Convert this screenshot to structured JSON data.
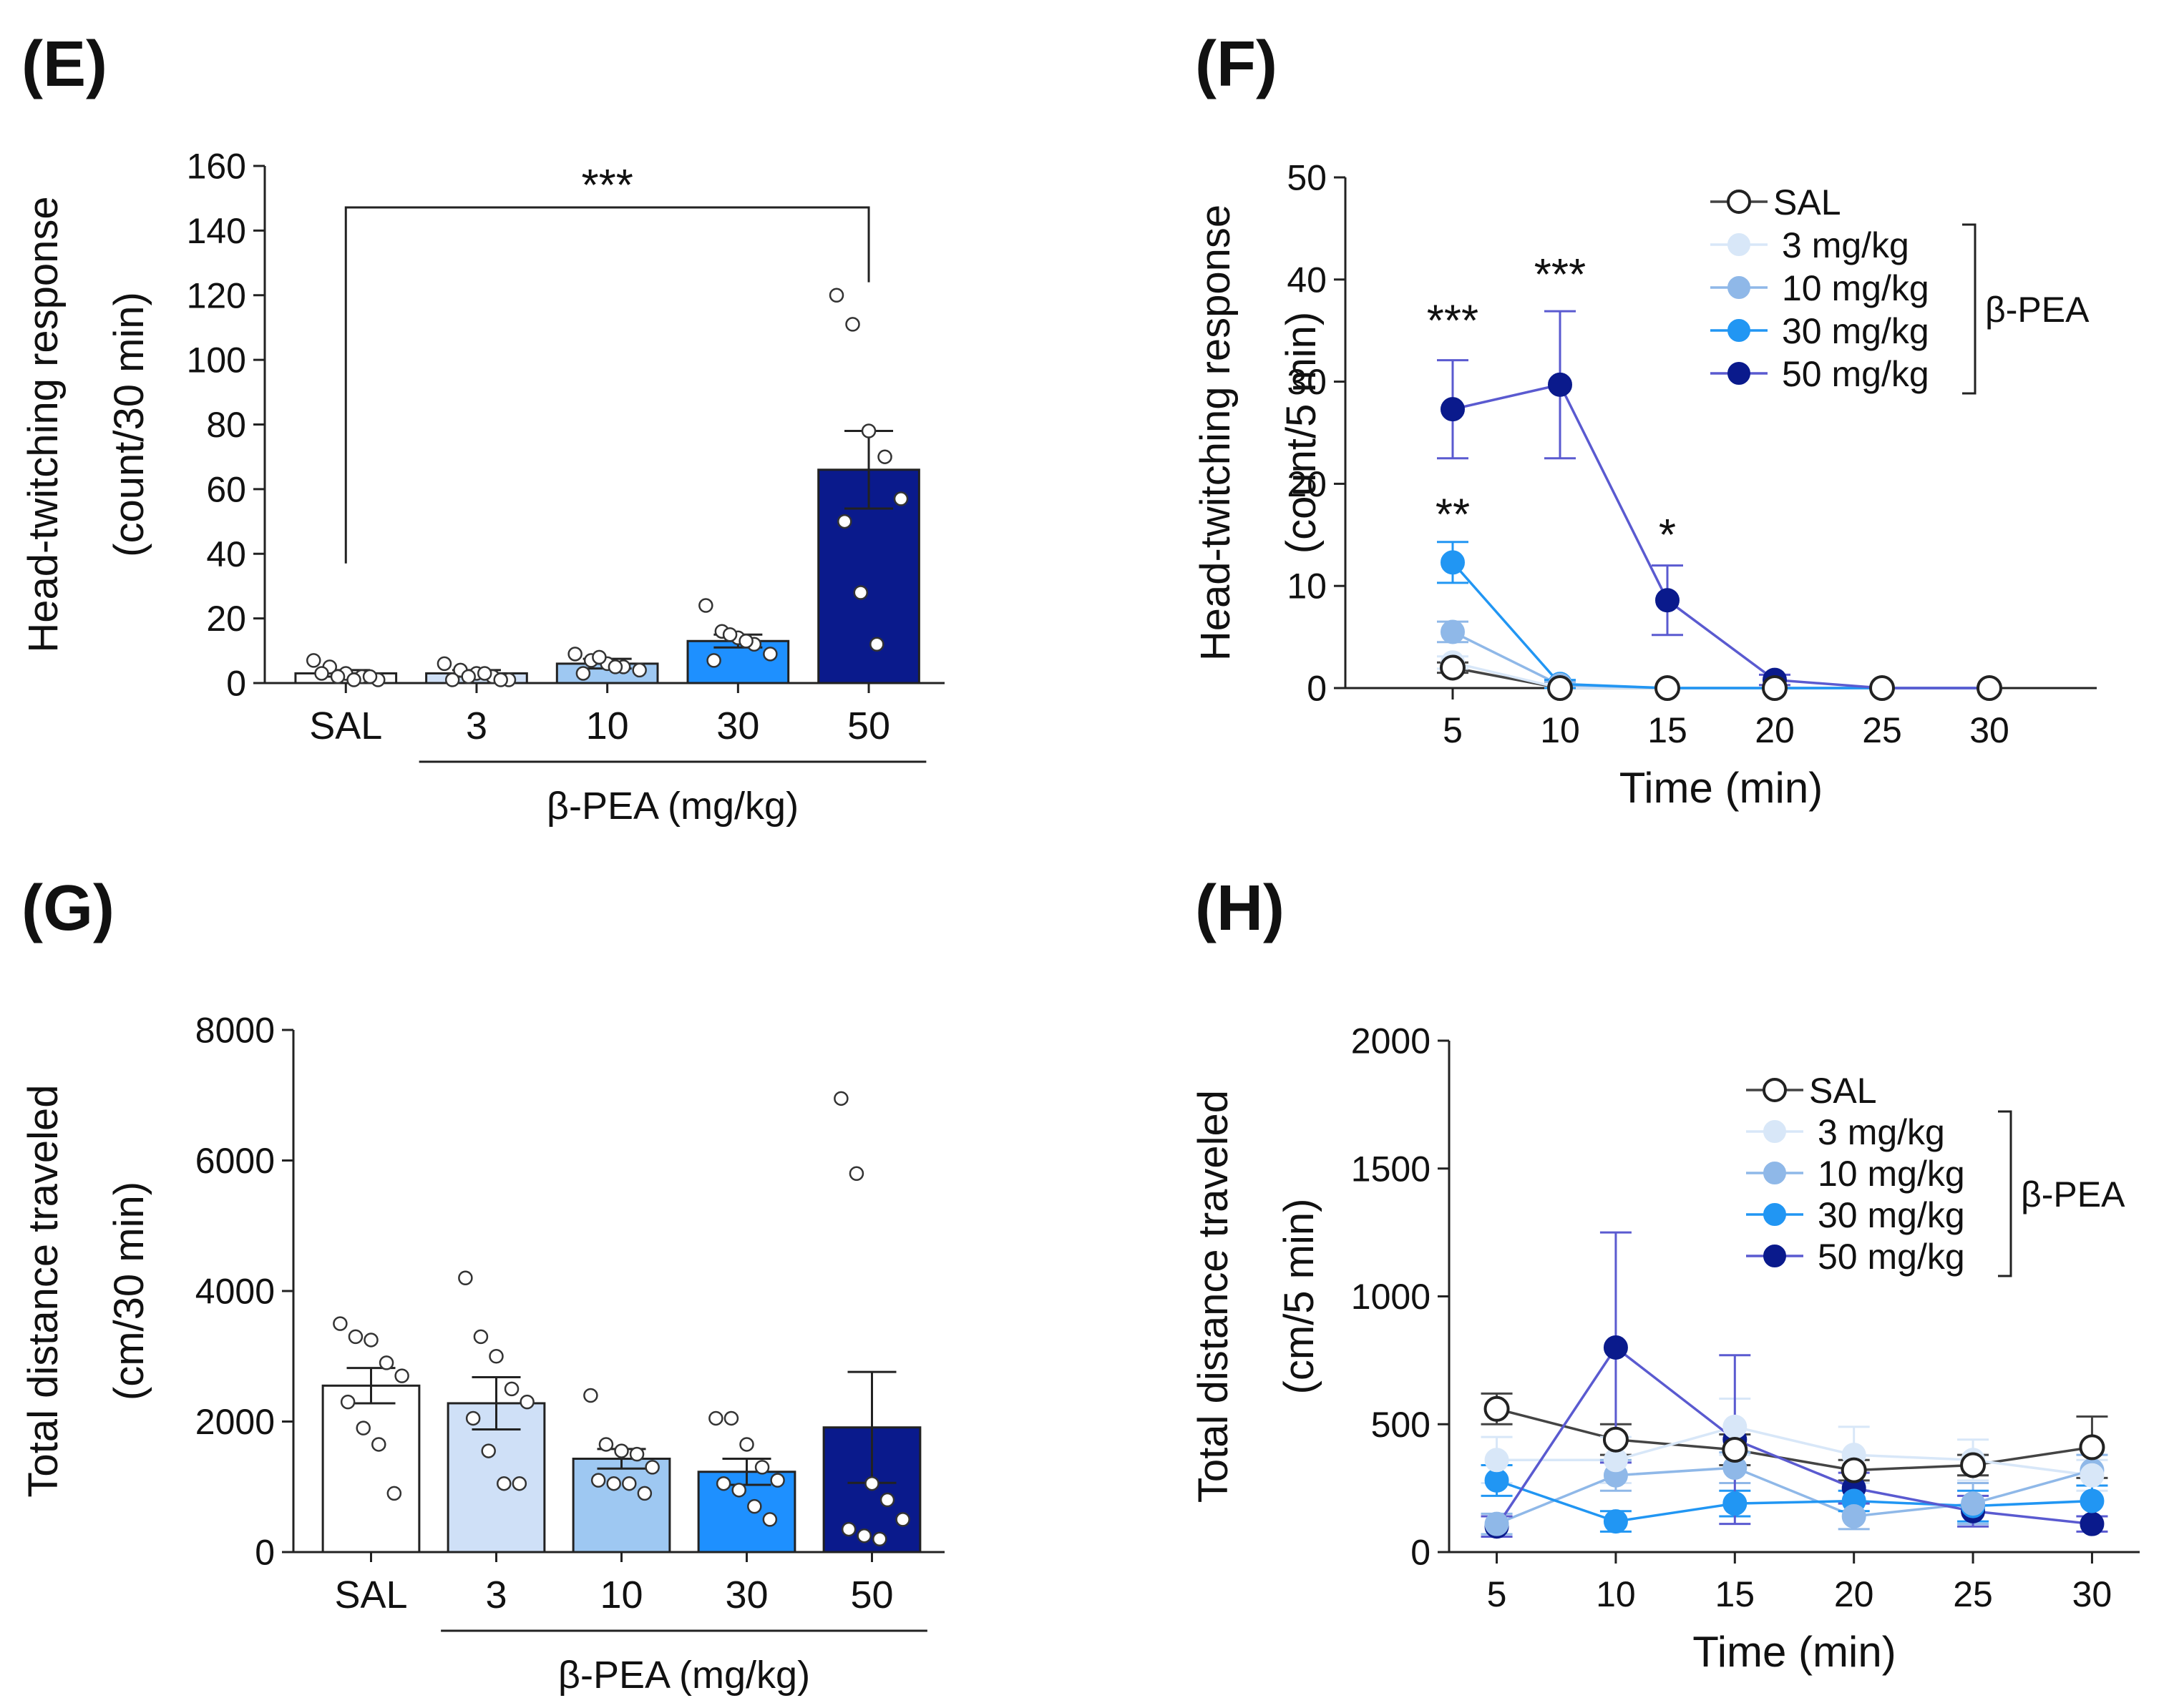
{
  "chart_data": [
    {
      "panel": "(E)",
      "type": "bar",
      "ylabel_line1": "Head-twitching response",
      "ylabel_line2": "(count/30 min)",
      "xgroup_label": "β-PEA (mg/kg)",
      "categories": [
        "SAL",
        "3",
        "10",
        "30",
        "50"
      ],
      "values": [
        3,
        3,
        6,
        13,
        66
      ],
      "errors": [
        1,
        1,
        1.5,
        2,
        12
      ],
      "ylim": [
        0,
        160
      ],
      "yticks": [
        0,
        20,
        40,
        60,
        80,
        100,
        120,
        140,
        160
      ],
      "colors": [
        "#ffffff",
        "#cfe0f7",
        "#9ec8f2",
        "#1e90ff",
        "#0a1a8c"
      ],
      "points": [
        [
          7,
          5,
          3,
          2,
          1,
          3,
          2,
          1,
          2
        ],
        [
          6,
          4,
          3,
          2,
          1,
          1,
          2,
          3,
          1
        ],
        [
          9,
          7,
          6,
          5,
          4,
          3,
          8,
          5
        ],
        [
          24,
          16,
          14,
          12,
          9,
          7,
          15,
          13
        ],
        [
          120,
          111,
          78,
          70,
          57,
          50,
          28,
          12
        ]
      ],
      "significance": {
        "from": 0,
        "to": 4,
        "label": "***"
      }
    },
    {
      "panel": "(F)",
      "type": "line",
      "ylabel_line1": "Head-twitching response",
      "ylabel_line2": "(count/5 min)",
      "xlabel": "Time (min)",
      "x": [
        5,
        10,
        15,
        20,
        25,
        30
      ],
      "xlim": [
        0,
        35
      ],
      "ylim": [
        0,
        50
      ],
      "yticks": [
        0,
        10,
        20,
        30,
        40,
        50
      ],
      "series": [
        {
          "name": "SAL",
          "color": "#444444",
          "open": true,
          "values": [
            2,
            0,
            0,
            0,
            0,
            0
          ],
          "errors": [
            0.5,
            0,
            0,
            0,
            0,
            0
          ]
        },
        {
          "name": "3 mg/kg",
          "color": "#d8e7f8",
          "open": false,
          "values": [
            2.5,
            0,
            0,
            0,
            0,
            0
          ],
          "errors": [
            0.6,
            0,
            0,
            0,
            0,
            0
          ]
        },
        {
          "name": "10 mg/kg",
          "color": "#8fb8e8",
          "open": false,
          "values": [
            5.5,
            0.3,
            0,
            0,
            0,
            0
          ],
          "errors": [
            1,
            0.3,
            0,
            0,
            0,
            0
          ]
        },
        {
          "name": "30 mg/kg",
          "color": "#2196f3",
          "open": false,
          "values": [
            12.3,
            0.4,
            0,
            0,
            0,
            0
          ],
          "errors": [
            2,
            0.4,
            0,
            0,
            0,
            0
          ]
        },
        {
          "name": "50 mg/kg",
          "color": "#0a1a8c",
          "line_color": "#5a5ad0",
          "open": false,
          "values": [
            27.3,
            29.7,
            8.6,
            0.8,
            0,
            0
          ],
          "errors": [
            4.8,
            7.2,
            3.4,
            0.5,
            0,
            0
          ]
        }
      ],
      "legend_bracket_label": "β-PEA",
      "annotations": [
        {
          "x": 5,
          "y": 34.5,
          "text": "***"
        },
        {
          "x": 10,
          "y": 39,
          "text": "***"
        },
        {
          "x": 5,
          "y": 15.5,
          "text": "**"
        },
        {
          "x": 15,
          "y": 13.5,
          "text": "*"
        }
      ]
    },
    {
      "panel": "(G)",
      "type": "bar",
      "ylabel_line1": "Total distance traveled",
      "ylabel_line2": "(cm/30 min)",
      "xgroup_label": "β-PEA (mg/kg)",
      "categories": [
        "SAL",
        "3",
        "10",
        "30",
        "50"
      ],
      "values": [
        2550,
        2280,
        1430,
        1230,
        1910
      ],
      "errors": [
        270,
        400,
        150,
        200,
        850
      ],
      "ylim": [
        0,
        8000
      ],
      "yticks": [
        0,
        2000,
        4000,
        6000,
        8000
      ],
      "colors": [
        "#ffffff",
        "#cfe0f7",
        "#9ec8f2",
        "#1e90ff",
        "#0a1a8c"
      ],
      "points": [
        [
          3500,
          3300,
          3250,
          2900,
          2700,
          2300,
          1900,
          1650,
          900
        ],
        [
          4200,
          3300,
          3000,
          2500,
          2300,
          2050,
          1550,
          1050,
          1050
        ],
        [
          2400,
          1650,
          1550,
          1500,
          1300,
          1100,
          1050,
          1050,
          900
        ],
        [
          2050,
          2050,
          1650,
          1300,
          1100,
          1050,
          950,
          700,
          500
        ],
        [
          6950,
          5800,
          1050,
          800,
          500,
          350,
          250,
          200
        ]
      ]
    },
    {
      "panel": "(H)",
      "type": "line",
      "ylabel_line1": "Total distance traveled",
      "ylabel_line2": "(cm/5 min)",
      "xlabel": "Time (min)",
      "x": [
        5,
        10,
        15,
        20,
        25,
        30
      ],
      "xlim": [
        3,
        32
      ],
      "ylim": [
        0,
        2000
      ],
      "yticks": [
        0,
        500,
        1000,
        1500,
        2000
      ],
      "series": [
        {
          "name": "SAL",
          "color": "#444444",
          "open": true,
          "values": [
            560,
            440,
            400,
            320,
            340,
            410
          ],
          "errors": [
            60,
            60,
            60,
            40,
            40,
            120
          ]
        },
        {
          "name": "3 mg/kg",
          "color": "#d8e7f8",
          "open": false,
          "values": [
            360,
            360,
            490,
            380,
            360,
            300
          ],
          "errors": [
            90,
            90,
            110,
            110,
            80,
            60
          ]
        },
        {
          "name": "10 mg/kg",
          "color": "#8fb8e8",
          "open": false,
          "values": [
            110,
            300,
            330,
            140,
            190,
            320
          ],
          "errors": [
            40,
            60,
            60,
            50,
            80,
            60
          ]
        },
        {
          "name": "30 mg/kg",
          "color": "#2196f3",
          "open": false,
          "values": [
            280,
            120,
            190,
            200,
            180,
            200
          ],
          "errors": [
            60,
            40,
            50,
            40,
            60,
            60
          ]
        },
        {
          "name": "50 mg/kg",
          "color": "#0a1a8c",
          "line_color": "#5a5ad0",
          "open": false,
          "values": [
            100,
            800,
            440,
            250,
            160,
            110
          ],
          "errors": [
            40,
            450,
            330,
            60,
            60,
            30
          ]
        }
      ],
      "legend_bracket_label": "β-PEA"
    }
  ]
}
